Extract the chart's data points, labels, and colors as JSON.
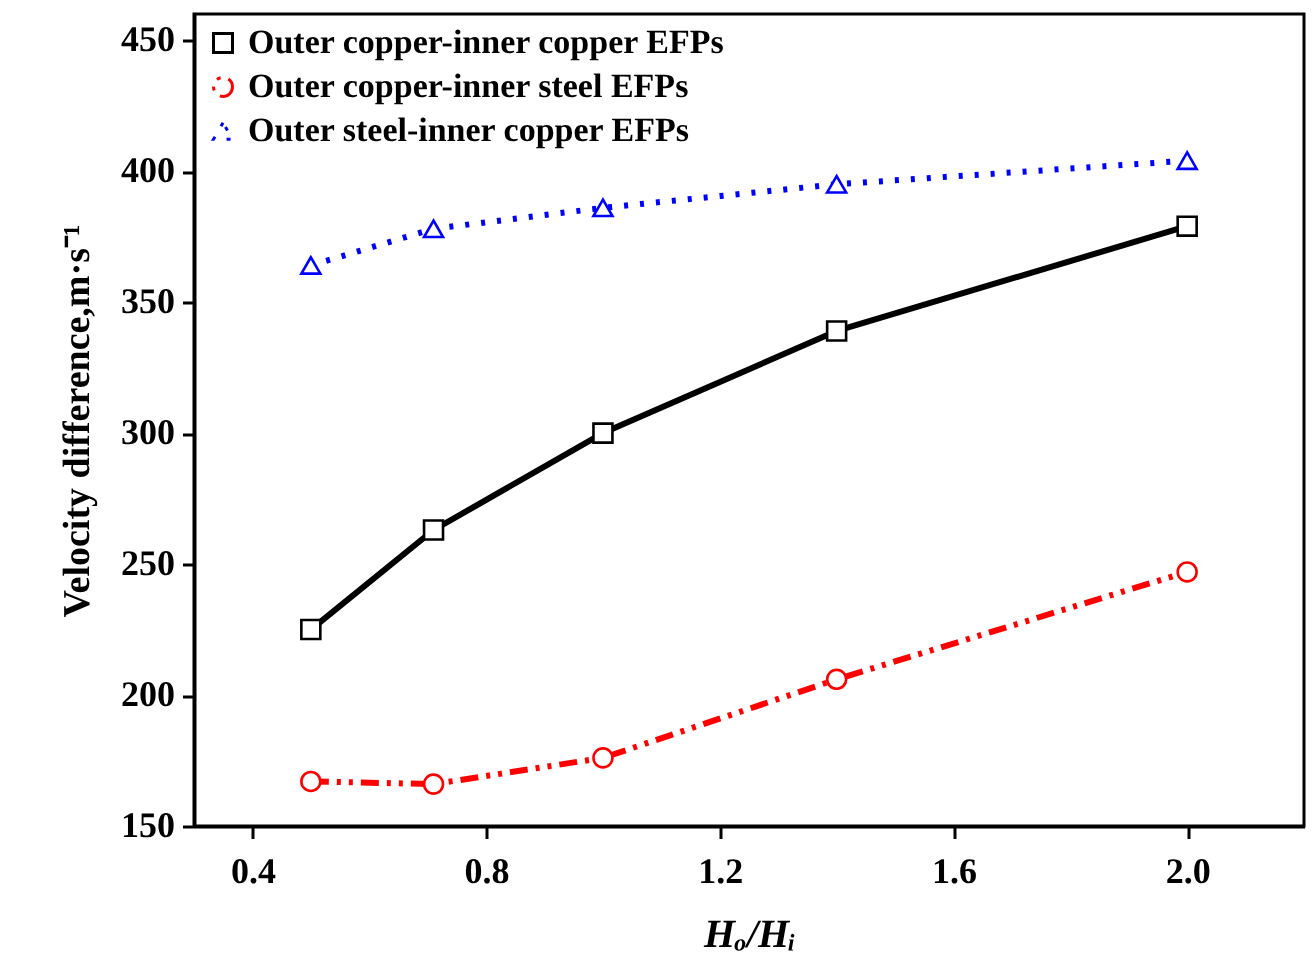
{
  "chart_data": {
    "type": "line",
    "xlabel": "Hₒ/Hᵢ",
    "ylabel": "Velocity difference,m·s⁻¹",
    "x": [
      0.5,
      0.71,
      1.0,
      1.4,
      2.0
    ],
    "xlim": [
      0.3,
      2.2
    ],
    "xticks": [
      0.4,
      0.8,
      1.2,
      1.6,
      {
        "value": 2,
        "label": "2.0"
      }
    ],
    "ylim": [
      150,
      460
    ],
    "yticks": [
      150,
      200,
      250,
      300,
      350,
      400,
      450
    ],
    "legend": "top left",
    "grid": false,
    "series": [
      {
        "name": "Outer copper-inner copper EFPs",
        "color": "#000000",
        "marker": "square",
        "line_style": "solid",
        "values": [
          225,
          263,
          300,
          339,
          379
        ]
      },
      {
        "name": "Outer copper-inner steel EFPs",
        "color": "#ff0000",
        "marker": "circle",
        "line_style": "dashdotdot",
        "values": [
          167,
          166,
          176,
          206,
          247
        ]
      },
      {
        "name": "Outer steel-inner copper EFPs",
        "color": "#0000ff",
        "marker": "triangle",
        "line_style": "dotted",
        "values": [
          364,
          378,
          386,
          395,
          404
        ]
      }
    ]
  }
}
